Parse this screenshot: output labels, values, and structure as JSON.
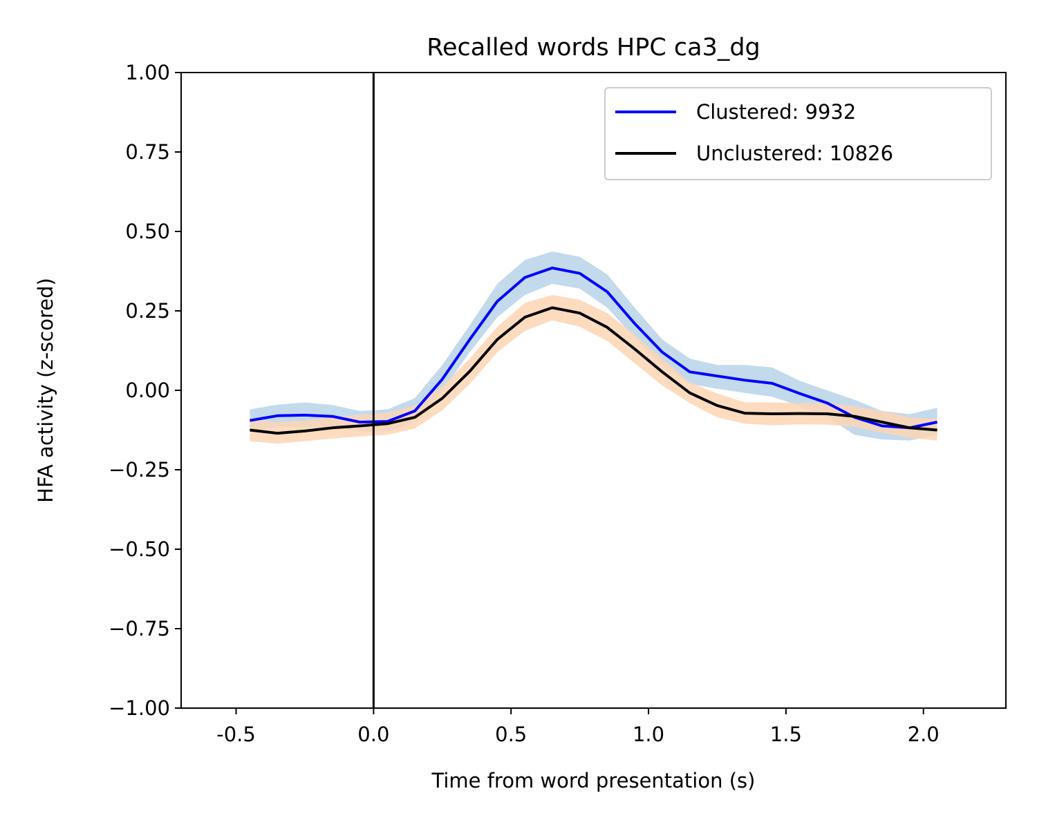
{
  "chart_data": {
    "type": "line",
    "title": "Recalled words HPC ca3_dg",
    "xlabel": "Time from word presentation (s)",
    "ylabel": "HFA activity (z-scored)",
    "xlim": [
      -0.7,
      2.3
    ],
    "ylim": [
      -1.0,
      1.0
    ],
    "xticks": [
      -0.5,
      0.0,
      0.5,
      1.0,
      1.5,
      2.0
    ],
    "xtick_labels": [
      "-0.5",
      "0.0",
      "0.5",
      "1.0",
      "1.5",
      "2.0"
    ],
    "yticks": [
      1.0,
      0.75,
      0.5,
      0.25,
      0.0,
      -0.25,
      -0.5,
      -0.75,
      -1.0
    ],
    "ytick_labels": [
      "1.00",
      "0.75",
      "0.50",
      "0.25",
      "0.00",
      "−0.25",
      "−0.50",
      "−0.75",
      "−1.00"
    ],
    "vline_x": 0.0,
    "legend_position": "top-right",
    "grid": false,
    "x": [
      -0.45,
      -0.35,
      -0.25,
      -0.15,
      -0.05,
      0.05,
      0.15,
      0.25,
      0.35,
      0.45,
      0.55,
      0.65,
      0.75,
      0.85,
      0.95,
      1.05,
      1.15,
      1.25,
      1.35,
      1.45,
      1.55,
      1.65,
      1.75,
      1.85,
      1.95,
      2.05
    ],
    "series": [
      {
        "name": "Clustered: 9932",
        "color": "#0000ff",
        "band_color": "#b9d3e9",
        "values": [
          -0.095,
          -0.08,
          -0.078,
          -0.082,
          -0.1,
          -0.098,
          -0.065,
          0.035,
          0.16,
          0.28,
          0.355,
          0.385,
          0.368,
          0.31,
          0.21,
          0.12,
          0.058,
          0.045,
          0.032,
          0.022,
          -0.01,
          -0.04,
          -0.085,
          -0.112,
          -0.118,
          -0.1
        ],
        "lower": [
          -0.13,
          -0.115,
          -0.115,
          -0.118,
          -0.13,
          -0.13,
          -0.1,
          -0.002,
          0.12,
          0.23,
          0.3,
          0.335,
          0.32,
          0.26,
          0.165,
          0.08,
          0.02,
          0.005,
          -0.008,
          -0.02,
          -0.05,
          -0.085,
          -0.14,
          -0.155,
          -0.158,
          -0.14
        ],
        "upper": [
          -0.06,
          -0.045,
          -0.038,
          -0.046,
          -0.065,
          -0.06,
          -0.025,
          0.08,
          0.205,
          0.335,
          0.41,
          0.437,
          0.42,
          0.365,
          0.26,
          0.16,
          0.1,
          0.08,
          0.08,
          0.072,
          0.03,
          0.0,
          -0.03,
          -0.065,
          -0.075,
          -0.055
        ]
      },
      {
        "name": "Unclustered: 10826",
        "color": "#000000",
        "band_color": "#fdd5b4",
        "values": [
          -0.125,
          -0.135,
          -0.128,
          -0.118,
          -0.112,
          -0.105,
          -0.085,
          -0.025,
          0.06,
          0.16,
          0.23,
          0.26,
          0.243,
          0.198,
          0.13,
          0.058,
          -0.008,
          -0.048,
          -0.072,
          -0.074,
          -0.073,
          -0.074,
          -0.082,
          -0.1,
          -0.118,
          -0.125
        ],
        "lower": [
          -0.16,
          -0.168,
          -0.16,
          -0.152,
          -0.145,
          -0.14,
          -0.12,
          -0.063,
          0.02,
          0.12,
          0.187,
          0.22,
          0.2,
          0.155,
          0.085,
          0.015,
          -0.04,
          -0.085,
          -0.105,
          -0.11,
          -0.107,
          -0.108,
          -0.115,
          -0.133,
          -0.15,
          -0.158
        ],
        "upper": [
          -0.092,
          -0.1,
          -0.095,
          -0.085,
          -0.077,
          -0.07,
          -0.048,
          0.013,
          0.1,
          0.2,
          0.275,
          0.3,
          0.285,
          0.243,
          0.175,
          0.1,
          0.025,
          -0.01,
          -0.038,
          -0.038,
          -0.04,
          -0.04,
          -0.05,
          -0.065,
          -0.085,
          -0.09
        ]
      }
    ]
  }
}
